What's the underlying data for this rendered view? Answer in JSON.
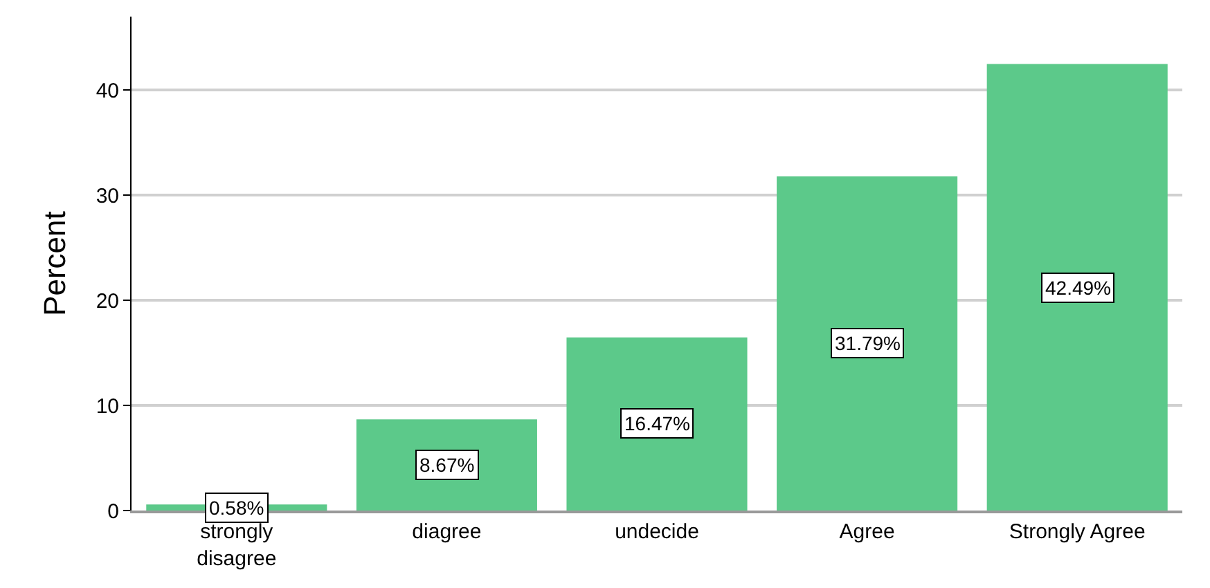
{
  "chart_data": {
    "type": "bar",
    "ylabel": "Percent",
    "categories": [
      "strongly disagree",
      "diagree",
      "undecide",
      "Agree",
      "Strongly Agree"
    ],
    "values": [
      0.58,
      8.67,
      16.47,
      31.79,
      42.49
    ],
    "value_labels": [
      "0.58%",
      "8.67%",
      "16.47%",
      "31.79%",
      "42.49%"
    ],
    "color": "#5cc98a",
    "ylim": [
      0,
      47
    ],
    "yticks": [
      0,
      10,
      20,
      30,
      40
    ],
    "grid": "y",
    "legend": false
  }
}
